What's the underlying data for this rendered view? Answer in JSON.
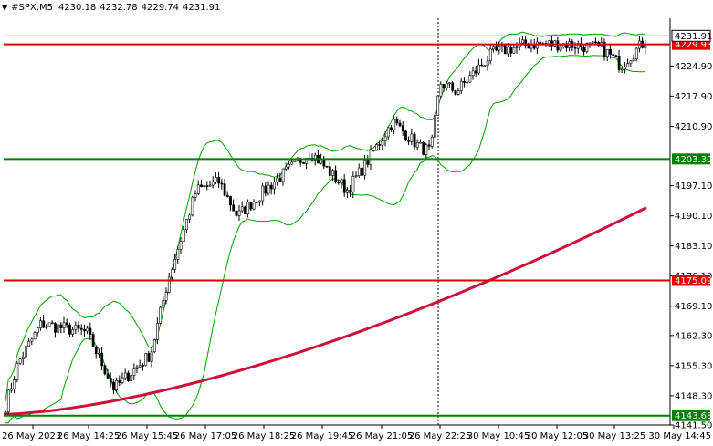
{
  "header": {
    "symbol": "#SPX,M5",
    "open": "4230.18",
    "high": "4232.78",
    "low": "4229.74",
    "close": "4231.91"
  },
  "price_axis": {
    "ticks": [
      "4224.90",
      "4217.90",
      "4210.90",
      "4197.10",
      "4190.10",
      "4183.10",
      "4176.10",
      "4169.10",
      "4162.30",
      "4155.30",
      "4148.30",
      "4141.50"
    ]
  },
  "time_axis": {
    "labels": [
      "26 May 2023",
      "26 May 14:25",
      "26 May 15:45",
      "26 May 17:05",
      "26 May 18:25",
      "26 May 19:45",
      "26 May 21:05",
      "26 May 22:25",
      "30 May 10:45",
      "30 May 12:05",
      "30 May 13:25",
      "30 May 14:45"
    ]
  },
  "levels": [
    {
      "price": 4229.93,
      "label": "4229.93",
      "color": "#e00000"
    },
    {
      "price": 4203.3,
      "label": "4203.30",
      "color": "#008000"
    },
    {
      "price": 4175.09,
      "label": "4175.09",
      "color": "#e00000"
    },
    {
      "price": 4143.68,
      "label": "4143.68",
      "color": "#008000"
    }
  ],
  "current_price": {
    "label": "4231.91"
  },
  "colors": {
    "candle": "#000000",
    "bands": "#00a000",
    "ma": "#d0103c",
    "grid": "#c0c0c0"
  },
  "chart_data": {
    "type": "line",
    "title": "",
    "xlabel": "",
    "ylabel": "",
    "ylim": [
      4141.5,
      4236.0
    ],
    "x": [
      "26 May 2023",
      "26 May 14:25",
      "26 May 15:45",
      "26 May 17:05",
      "26 May 18:25",
      "26 May 19:45",
      "26 May 21:05",
      "26 May 22:25",
      "30 May 10:45",
      "30 May 12:05",
      "30 May 13:25",
      "30 May 14:45"
    ],
    "series": [
      {
        "values": [
          4146,
          4163,
          4150,
          4199,
          4199,
          4196,
          4210,
          4208,
          4222,
          4230,
          4225,
          4231.9
        ]
      },
      {
        "values": [
          4144,
          4148,
          4149,
          4151,
          4155,
          4159,
          4163,
          4167,
          4173,
          4179,
          4185,
          4191
        ]
      }
    ]
  }
}
